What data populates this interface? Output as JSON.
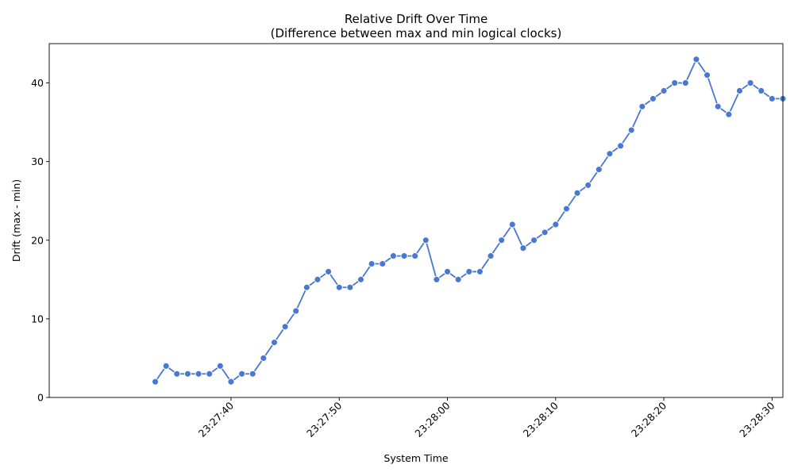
{
  "chart_data": {
    "type": "line",
    "title": "Relative Drift Over Time",
    "subtitle": "(Difference between max and min logical clocks)",
    "xlabel": "System Time",
    "ylabel": "Drift (max - min)",
    "ylim": [
      0,
      45
    ],
    "xlim_seconds": [
      -9.8,
      58.0
    ],
    "x_start_time": "23:27:33",
    "x_seconds": [
      0,
      1,
      2,
      3,
      4,
      5,
      6,
      7,
      8,
      9,
      10,
      11,
      12,
      13,
      14,
      15,
      16,
      17,
      18,
      19,
      20,
      21,
      22,
      23,
      24,
      25,
      26,
      27,
      28,
      29,
      30,
      31,
      32,
      33,
      34,
      35,
      36,
      37,
      38,
      39,
      40,
      41,
      42,
      43,
      44,
      45,
      46,
      47,
      48,
      49,
      50,
      51,
      52,
      53,
      54,
      55,
      56,
      57,
      58
    ],
    "y_ticks": [
      0,
      10,
      20,
      30,
      40
    ],
    "y_tick_labels": [
      "0",
      "10",
      "20",
      "30",
      "40"
    ],
    "x_ticks_seconds": [
      7,
      17,
      27,
      37,
      47,
      57
    ],
    "x_tick_labels": [
      "23:27:40",
      "23:27:50",
      "23:28:00",
      "23:28:10",
      "23:28:20",
      "23:28:30"
    ],
    "grid": false,
    "series": [
      {
        "name": "Drift",
        "color": "#4878cf",
        "values": [
          2,
          4,
          3,
          3,
          3,
          3,
          4,
          2,
          3,
          3,
          5,
          7,
          9,
          11,
          14,
          15,
          16,
          14,
          14,
          15,
          17,
          17,
          18,
          18,
          18,
          20,
          15,
          16,
          15,
          16,
          16,
          18,
          20,
          22,
          19,
          20,
          21,
          22,
          24,
          26,
          27,
          29,
          31,
          32,
          34,
          37,
          38,
          39,
          40,
          40,
          43,
          41,
          37,
          36,
          39,
          40,
          39,
          38,
          38
        ]
      }
    ]
  }
}
